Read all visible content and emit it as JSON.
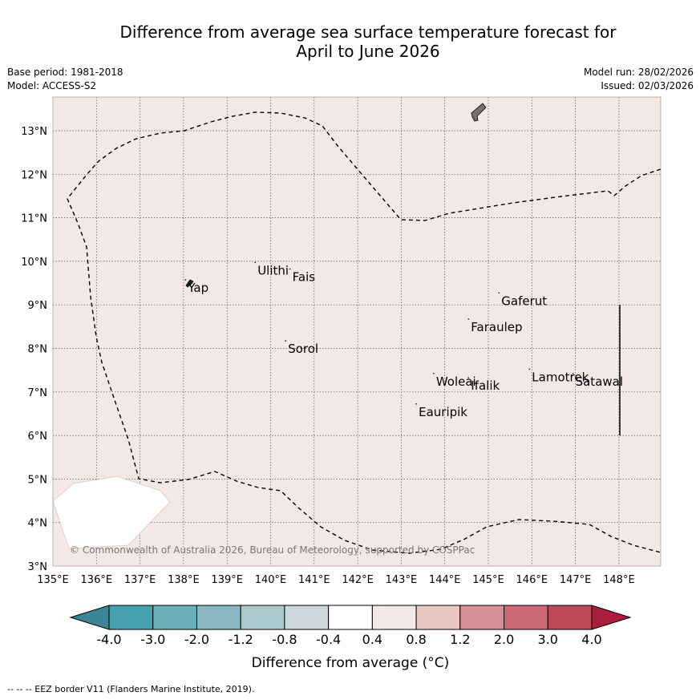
{
  "title": {
    "line1": "Difference from average sea surface temperature forecast for",
    "line2": "April to June 2026"
  },
  "info": {
    "base_period": "Base period: 1981-2018",
    "model": "Model: ACCESS-S2",
    "model_run": "Model run: 28/02/2026",
    "issued": "Issued: 02/03/2026"
  },
  "map": {
    "lon_range": [
      135,
      149
    ],
    "lat_range": [
      3,
      13.8
    ],
    "lon_ticks": [
      135,
      136,
      137,
      138,
      139,
      140,
      141,
      142,
      143,
      144,
      145,
      146,
      147,
      148
    ],
    "lon_labels": [
      "135°E",
      "136°E",
      "137°E",
      "138°E",
      "139°E",
      "140°E",
      "141°E",
      "142°E",
      "143°E",
      "144°E",
      "145°E",
      "146°E",
      "147°E",
      "148°E"
    ],
    "lat_ticks": [
      3,
      4,
      5,
      6,
      7,
      8,
      9,
      10,
      11,
      12,
      13
    ],
    "lat_labels": [
      "3°N",
      "4°N",
      "5°N",
      "6°N",
      "7°N",
      "8°N",
      "9°N",
      "10°N",
      "11°N",
      "12°N",
      "13°N"
    ],
    "ocean_color": "#f4e8e6",
    "land_color": "#7a6e6c",
    "places": [
      {
        "name": "Yap",
        "lon": 138.1,
        "lat": 9.5
      },
      {
        "name": "Ulithi",
        "lon": 139.7,
        "lat": 9.9
      },
      {
        "name": "Fais",
        "lon": 140.5,
        "lat": 9.75
      },
      {
        "name": "Sorol",
        "lon": 140.4,
        "lat": 8.1
      },
      {
        "name": "Gaferut",
        "lon": 145.3,
        "lat": 9.2
      },
      {
        "name": "Faraulep",
        "lon": 144.6,
        "lat": 8.6
      },
      {
        "name": "Lamotrek",
        "lon": 146.0,
        "lat": 7.45
      },
      {
        "name": "Satawal",
        "lon": 147.0,
        "lat": 7.35
      },
      {
        "name": "Woleai",
        "lon": 143.8,
        "lat": 7.35
      },
      {
        "name": "Ifalik",
        "lon": 144.6,
        "lat": 7.25
      },
      {
        "name": "Eauripik",
        "lon": 143.4,
        "lat": 6.65
      }
    ],
    "copyright": "© Commonwealth of Australia 2026, Bureau of Meteorology, supported by COSPPac"
  },
  "colorbar": {
    "title": "Difference from average (°C)",
    "labels": [
      "-4.0",
      "-3.0",
      "-2.0",
      "-1.2",
      "-0.8",
      "-0.4",
      "0.4",
      "0.8",
      "1.2",
      "2.0",
      "3.0",
      "4.0"
    ],
    "colors": [
      "#3a8694",
      "#47a0b0",
      "#6aaeba",
      "#8ab8c2",
      "#abc8cd",
      "#ccd8dc",
      "#ffffff",
      "#f4e8e6",
      "#e8c6c1",
      "#d79096",
      "#cb6a75",
      "#c04858",
      "#a81e3c"
    ]
  },
  "footnote": "--  --  -- EEZ border V11 (Flanders Marine Institute, 2019)."
}
